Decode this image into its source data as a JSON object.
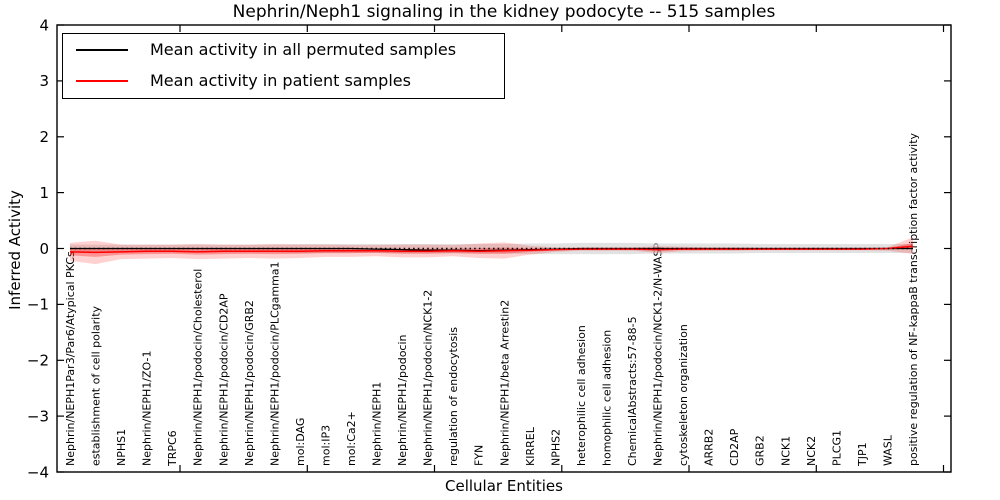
{
  "figure": {
    "title": "Nephrin/Neph1 signaling in the kidney podocyte -- 515 samples"
  },
  "axes": {
    "ylabel": "Inferred Activity",
    "xlabel": "Cellular Entities",
    "y_tick_values": [
      4,
      3,
      2,
      1,
      0,
      -1,
      -2,
      -3,
      -4
    ],
    "y_tick_labels": [
      "4",
      "3",
      "2",
      "1",
      "0",
      "−1",
      "−2",
      "−3",
      "−4"
    ]
  },
  "legend": {
    "entries": [
      {
        "label": "Mean activity in all permuted samples",
        "color": "#000000"
      },
      {
        "label": "Mean activity in patient samples",
        "color": "#ff0000"
      }
    ]
  },
  "chart_data": {
    "type": "line",
    "title": "Nephrin/Neph1 signaling in the kidney podocyte -- 515 samples",
    "xlabel": "Cellular Entities",
    "ylabel": "Inferred Activity",
    "ylim": [
      -4,
      4
    ],
    "grid": false,
    "legend_position": "upper left",
    "zero_line_style": "dotted",
    "categories": [
      "Nephrin/NEPH1Par3/Par6/Atypical PKCs",
      "establishment of cell polarity",
      "NPHS1",
      "Nephrin/NEPH1/ZO-1",
      "TRPC6",
      "Nephrin/NEPH1/podocin/Cholesterol",
      "Nephrin/NEPH1/podocin/CD2AP",
      "Nephrin/NEPH1/podocin/GRB2",
      "Nephrin/NEPH1/podocin/PLCgamma1",
      "mol:DAG",
      "mol:IP3",
      "mol:Ca2+",
      "Nephrin/NEPH1",
      "Nephrin/NEPH1/podocin",
      "Nephrin/NEPH1/podocin/NCK1-2",
      "regulation of endocytosis",
      "FYN",
      "Nephrin/NEPH1/beta Arrestin2",
      "KIRREL",
      "NPHS2",
      "heterophilic cell adhesion",
      "homophilic cell adhesion",
      "ChemicalAbstracts:57-88-5",
      "Nephrin/NEPH1/podocin/NCK1-2/N-WASP",
      "cytoskeleton organization",
      "ARRB2",
      "CD2AP",
      "GRB2",
      "NCK1",
      "NCK2",
      "PLCG1",
      "TJP1",
      "WASL",
      "positive regulation of NF-kappaB transcription factor activity"
    ],
    "series": [
      {
        "name": "Mean activity in all permuted samples",
        "color": "#000000",
        "band_color": "#d3d3d3",
        "values": [
          0,
          0,
          0,
          0,
          0,
          0,
          0,
          0,
          0,
          0,
          0,
          0,
          -0.01,
          -0.02,
          -0.03,
          -0.03,
          -0.04,
          -0.03,
          -0.02,
          -0.01,
          0,
          0,
          0,
          0,
          0,
          0,
          0,
          0,
          0,
          0,
          0,
          0,
          0,
          0
        ],
        "band_upper": [
          0.07,
          0.07,
          0.07,
          0.07,
          0.07,
          0.07,
          0.07,
          0.07,
          0.07,
          0.08,
          0.08,
          0.08,
          0.08,
          0.08,
          0.08,
          0.08,
          0.08,
          0.08,
          0.09,
          0.09,
          0.1,
          0.1,
          0.1,
          0.09,
          0.09,
          0.09,
          0.09,
          0.08,
          0.08,
          0.08,
          0.08,
          0.08,
          0.08,
          0.08
        ],
        "band_lower": [
          -0.07,
          -0.07,
          -0.07,
          -0.07,
          -0.07,
          -0.07,
          -0.07,
          -0.07,
          -0.07,
          -0.08,
          -0.08,
          -0.08,
          -0.08,
          -0.09,
          -0.09,
          -0.09,
          -0.09,
          -0.09,
          -0.1,
          -0.1,
          -0.1,
          -0.1,
          -0.1,
          -0.09,
          -0.09,
          -0.09,
          -0.09,
          -0.08,
          -0.08,
          -0.08,
          -0.08,
          -0.08,
          -0.08,
          -0.08
        ]
      },
      {
        "name": "Mean activity in patient samples",
        "color": "#ff0000",
        "band_color": "#ff0000",
        "values": [
          -0.06,
          -0.07,
          -0.06,
          -0.05,
          -0.05,
          -0.06,
          -0.05,
          -0.05,
          -0.05,
          -0.05,
          -0.04,
          -0.04,
          -0.04,
          -0.05,
          -0.05,
          -0.04,
          -0.05,
          -0.04,
          -0.03,
          -0.02,
          -0.01,
          -0.01,
          -0.01,
          -0.02,
          -0.01,
          -0.01,
          -0.01,
          -0.01,
          -0.01,
          -0.01,
          -0.01,
          -0.01,
          0,
          0.04
        ],
        "band_upper": [
          0.1,
          0.14,
          0.07,
          0.07,
          0.07,
          0.08,
          0.07,
          0.07,
          0.08,
          0.07,
          0.07,
          0.06,
          0.06,
          0.07,
          0.07,
          0.06,
          0.09,
          0.11,
          0.05,
          0.02,
          0.02,
          0.02,
          0.02,
          0.04,
          0.03,
          0.02,
          0.02,
          0.015,
          0.015,
          0.015,
          0.015,
          0.015,
          0.02,
          0.2
        ],
        "band_lower": [
          -0.22,
          -0.28,
          -0.19,
          -0.18,
          -0.17,
          -0.19,
          -0.18,
          -0.17,
          -0.18,
          -0.17,
          -0.15,
          -0.15,
          -0.14,
          -0.16,
          -0.16,
          -0.14,
          -0.17,
          -0.18,
          -0.11,
          -0.06,
          -0.04,
          -0.04,
          -0.04,
          -0.08,
          -0.05,
          -0.04,
          -0.04,
          -0.03,
          -0.03,
          -0.03,
          -0.03,
          -0.03,
          -0.04,
          -0.1
        ]
      }
    ]
  }
}
